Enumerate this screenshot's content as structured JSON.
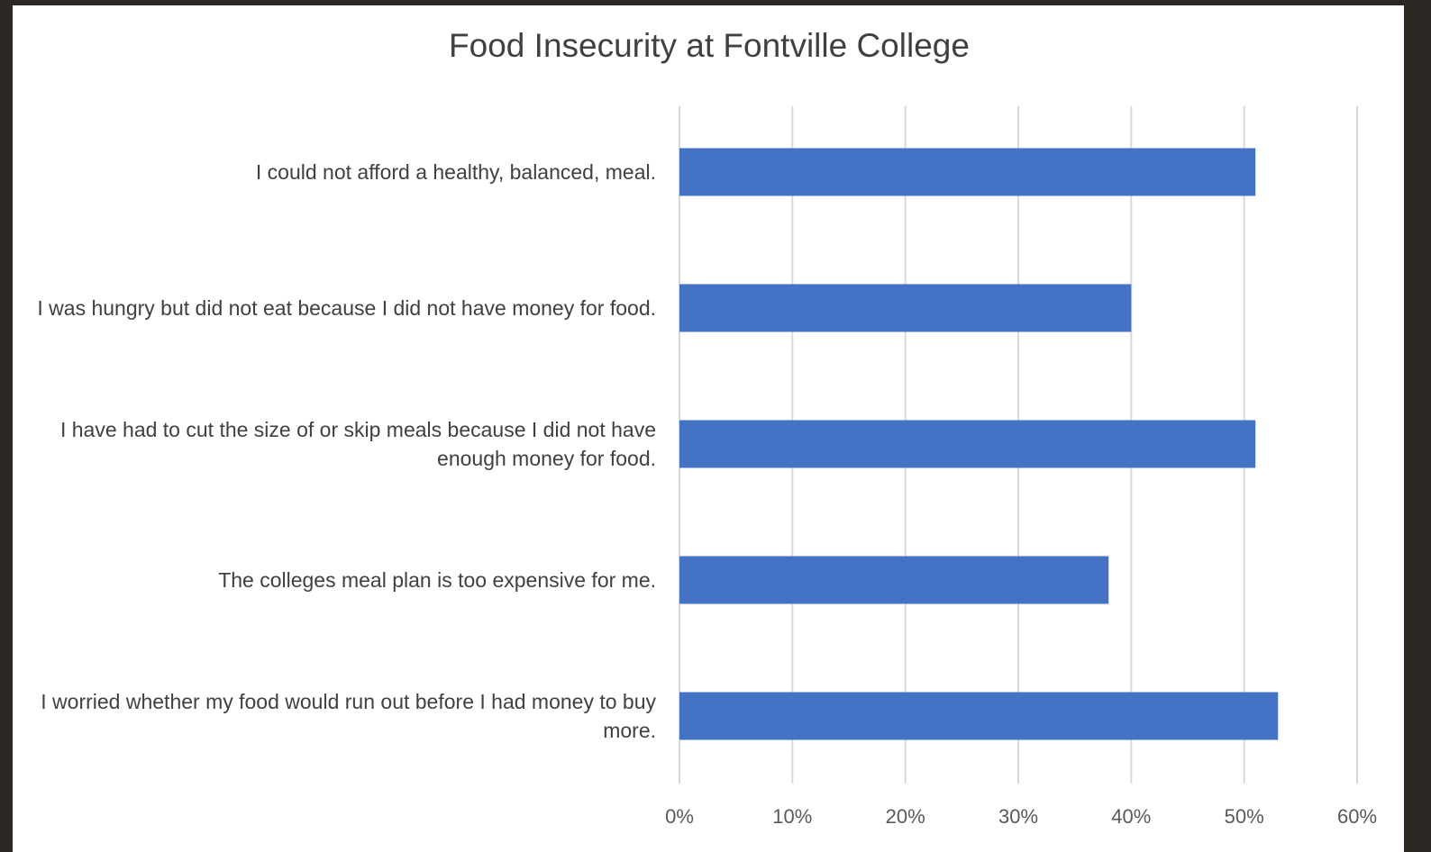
{
  "chart_data": {
    "type": "bar",
    "orientation": "horizontal",
    "title": "Food Insecurity at Fontville College",
    "categories": [
      "I could not afford a healthy, balanced, meal.",
      "I was hungry but did not eat because I did not have money for food.",
      "I have had to cut the size of or skip meals because I did not have enough money for food.",
      "The colleges meal plan is too expensive for me.",
      "I worried whether my food would run out before I had money to buy more."
    ],
    "values": [
      51,
      40,
      51,
      38,
      53
    ],
    "xlim": [
      0,
      60
    ],
    "x_ticks": [
      0,
      10,
      20,
      30,
      40,
      50,
      60
    ],
    "x_tick_labels": [
      "0%",
      "10%",
      "20%",
      "30%",
      "40%",
      "50%",
      "60%"
    ],
    "xlabel": "",
    "ylabel": "",
    "grid": "vertical",
    "legend": "none",
    "bar_color": "#4472c4",
    "grid_color": "#d9d9d9"
  }
}
